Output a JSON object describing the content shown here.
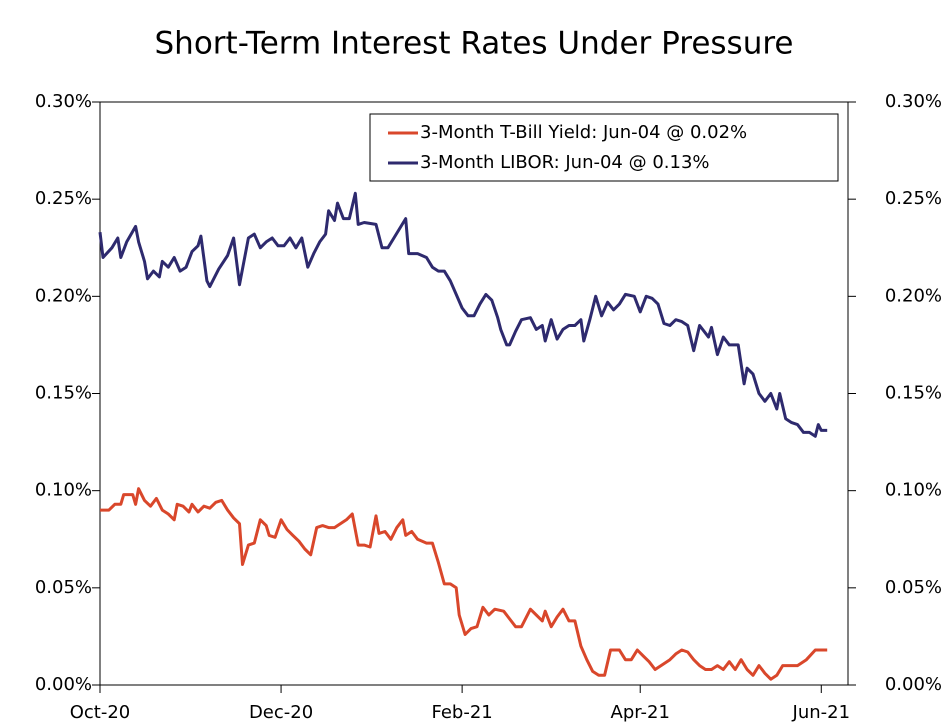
{
  "chart_data": {
    "type": "line",
    "title": "Short-Term Interest Rates Under Pressure",
    "xlim": [
      0,
      252
    ],
    "xticks": [
      {
        "value": 0,
        "label": "Oct-20"
      },
      {
        "value": 61,
        "label": "Dec-20"
      },
      {
        "value": 122,
        "label": "Feb-21"
      },
      {
        "value": 182,
        "label": "Apr-21"
      },
      {
        "value": 243,
        "label": "Jun-21"
      }
    ],
    "ylim": [
      0,
      0.3
    ],
    "yticks": [
      {
        "value": 0,
        "label": "0.00%"
      },
      {
        "value": 0.05,
        "label": "0.05%"
      },
      {
        "value": 0.1,
        "label": "0.10%"
      },
      {
        "value": 0.15,
        "label": "0.15%"
      },
      {
        "value": 0.2,
        "label": "0.20%"
      },
      {
        "value": 0.25,
        "label": "0.25%"
      },
      {
        "value": 0.3,
        "label": "0.30%"
      }
    ],
    "y2lim": [
      0,
      0.3
    ],
    "y2ticks": [
      {
        "value": 0,
        "label": "0.00%"
      },
      {
        "value": 0.05,
        "label": "0.05%"
      },
      {
        "value": 0.1,
        "label": "0.10%"
      },
      {
        "value": 0.15,
        "label": "0.15%"
      },
      {
        "value": 0.2,
        "label": "0.20%"
      },
      {
        "value": 0.25,
        "label": "0.25%"
      },
      {
        "value": 0.3,
        "label": "0.30%"
      }
    ],
    "legend": "upper right",
    "series": [
      {
        "name": "3-Month T-Bill Yield: Jun-04 @ 0.02%",
        "color": "#d9472b",
        "x": [
          0,
          3,
          5,
          7,
          8,
          11,
          12,
          13,
          15,
          17,
          19,
          21,
          23,
          25,
          26,
          28,
          30,
          31,
          33,
          35,
          37,
          39,
          41,
          43,
          45,
          47,
          48,
          50,
          52,
          54,
          56,
          57,
          59,
          61,
          63,
          65,
          67,
          69,
          71,
          73,
          75,
          77,
          79,
          80,
          83,
          85,
          87,
          89,
          91,
          93,
          94,
          96,
          98,
          100,
          102,
          103,
          105,
          107,
          110,
          112,
          114,
          116,
          118,
          120,
          121,
          123,
          125,
          127,
          129,
          131,
          133,
          136,
          138,
          140,
          142,
          145,
          147,
          149,
          150,
          152,
          154,
          156,
          158,
          160,
          162,
          164,
          166,
          168,
          170,
          172,
          175,
          177,
          179,
          181,
          183,
          185,
          187,
          189,
          192,
          194,
          196,
          198,
          200,
          202,
          204,
          206,
          208,
          210,
          212,
          214,
          216,
          218,
          220,
          222,
          224,
          226,
          228,
          230,
          232,
          235,
          238,
          241,
          245
        ],
        "values": [
          0.09,
          0.09,
          0.093,
          0.093,
          0.098,
          0.098,
          0.093,
          0.101,
          0.095,
          0.092,
          0.096,
          0.09,
          0.088,
          0.085,
          0.093,
          0.092,
          0.089,
          0.093,
          0.089,
          0.092,
          0.091,
          0.094,
          0.095,
          0.09,
          0.086,
          0.083,
          0.062,
          0.072,
          0.073,
          0.085,
          0.082,
          0.077,
          0.076,
          0.085,
          0.08,
          0.077,
          0.074,
          0.07,
          0.067,
          0.081,
          0.082,
          0.081,
          0.081,
          0.082,
          0.085,
          0.088,
          0.072,
          0.072,
          0.071,
          0.087,
          0.078,
          0.079,
          0.075,
          0.081,
          0.085,
          0.077,
          0.079,
          0.075,
          0.073,
          0.073,
          0.063,
          0.052,
          0.052,
          0.05,
          0.036,
          0.026,
          0.029,
          0.03,
          0.04,
          0.036,
          0.039,
          0.038,
          0.034,
          0.03,
          0.03,
          0.039,
          0.036,
          0.033,
          0.038,
          0.03,
          0.035,
          0.039,
          0.033,
          0.033,
          0.02,
          0.013,
          0.007,
          0.005,
          0.005,
          0.018,
          0.018,
          0.013,
          0.013,
          0.018,
          0.015,
          0.012,
          0.008,
          0.01,
          0.013,
          0.016,
          0.018,
          0.017,
          0.013,
          0.01,
          0.008,
          0.008,
          0.01,
          0.008,
          0.012,
          0.008,
          0.013,
          0.008,
          0.005,
          0.01,
          0.006,
          0.003,
          0.005,
          0.01,
          0.01,
          0.01,
          0.013,
          0.018,
          0.018
        ]
      },
      {
        "name": "3-Month LIBOR: Jun-04 @ 0.13%",
        "color": "#2e2a6e",
        "axis": "y2",
        "x": [
          0,
          1,
          4,
          6,
          7,
          9,
          12,
          13,
          15,
          16,
          18,
          20,
          21,
          23,
          25,
          27,
          29,
          31,
          33,
          34,
          36,
          37,
          40,
          43,
          45,
          47,
          50,
          52,
          54,
          56,
          58,
          60,
          62,
          64,
          66,
          68,
          70,
          72,
          74,
          76,
          77,
          79,
          80,
          82,
          84,
          86,
          87,
          89,
          93,
          95,
          97,
          99,
          103,
          104,
          107,
          110,
          112,
          114,
          116,
          118,
          120,
          122,
          124,
          126,
          128,
          130,
          132,
          134,
          135,
          137,
          138,
          140,
          142,
          145,
          147,
          149,
          150,
          152,
          154,
          156,
          158,
          160,
          162,
          163,
          165,
          167,
          169,
          171,
          173,
          175,
          177,
          180,
          182,
          184,
          186,
          188,
          190,
          192,
          194,
          196,
          198,
          200,
          202,
          205,
          206,
          208,
          210,
          212,
          215,
          217,
          218,
          220,
          222,
          224,
          226,
          228,
          229,
          231,
          233,
          235,
          237,
          239,
          241,
          242,
          243,
          245
        ],
        "values": [
          0.233,
          0.22,
          0.225,
          0.23,
          0.22,
          0.228,
          0.236,
          0.228,
          0.218,
          0.209,
          0.213,
          0.21,
          0.218,
          0.215,
          0.22,
          0.213,
          0.215,
          0.223,
          0.226,
          0.231,
          0.208,
          0.205,
          0.214,
          0.221,
          0.23,
          0.206,
          0.23,
          0.232,
          0.225,
          0.228,
          0.23,
          0.226,
          0.226,
          0.23,
          0.225,
          0.23,
          0.215,
          0.222,
          0.228,
          0.232,
          0.244,
          0.239,
          0.248,
          0.24,
          0.24,
          0.253,
          0.237,
          0.238,
          0.237,
          0.225,
          0.225,
          0.23,
          0.24,
          0.222,
          0.222,
          0.22,
          0.215,
          0.213,
          0.213,
          0.208,
          0.201,
          0.194,
          0.19,
          0.19,
          0.196,
          0.201,
          0.198,
          0.189,
          0.183,
          0.175,
          0.175,
          0.182,
          0.188,
          0.189,
          0.183,
          0.185,
          0.177,
          0.188,
          0.178,
          0.183,
          0.185,
          0.185,
          0.188,
          0.177,
          0.188,
          0.2,
          0.19,
          0.197,
          0.193,
          0.196,
          0.201,
          0.2,
          0.192,
          0.2,
          0.199,
          0.196,
          0.186,
          0.185,
          0.188,
          0.187,
          0.185,
          0.172,
          0.185,
          0.179,
          0.184,
          0.17,
          0.179,
          0.175,
          0.175,
          0.155,
          0.163,
          0.16,
          0.15,
          0.146,
          0.15,
          0.142,
          0.15,
          0.137,
          0.135,
          0.134,
          0.13,
          0.13,
          0.128,
          0.134,
          0.131,
          0.131
        ]
      }
    ]
  }
}
